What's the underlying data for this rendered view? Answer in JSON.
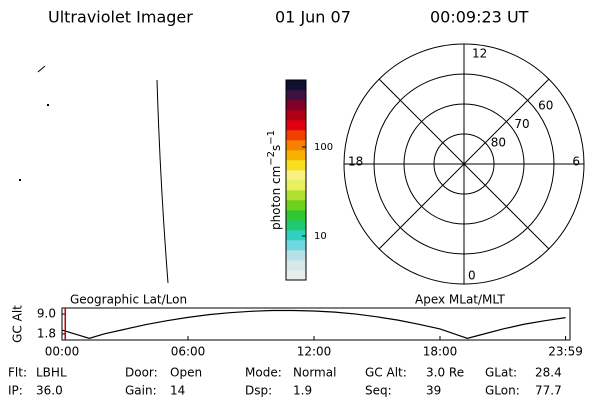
{
  "header": {
    "instrument": "Ultraviolet Imager",
    "date": "01 Jun 07",
    "time": "00:09:23 UT"
  },
  "colorbar": {
    "label_parts": [
      "photon cm",
      "−2",
      "s",
      "−1"
    ],
    "log": true,
    "lim": [
      3.2,
      565
    ],
    "ticks": [
      10,
      100
    ],
    "colors": [
      "#e8eeee",
      "#d8e8ea",
      "#b8e0e8",
      "#70d8e0",
      "#30d0c0",
      "#20c870",
      "#30c830",
      "#70d020",
      "#b0e030",
      "#e8f060",
      "#f8f080",
      "#f8e020",
      "#f8b000",
      "#f88000",
      "#f04000",
      "#e00010",
      "#b00018",
      "#800028",
      "#401040",
      "#101030"
    ]
  },
  "polar": {
    "mlt_labels": [
      "12",
      "18",
      "6",
      "0"
    ],
    "lat_labels": [
      60,
      70,
      80
    ],
    "lat_lim": [
      50,
      90
    ]
  },
  "chart_data": {
    "type": "line",
    "title_left": "Geographic Lat/Lon",
    "title_right": "Apex MLat/MLT",
    "ylabel": "GC Alt",
    "x": [
      0,
      1,
      1.3,
      2,
      3,
      4,
      5,
      6,
      7,
      8,
      9,
      10,
      11,
      12,
      13,
      14,
      15,
      16,
      17,
      18,
      19,
      19.3,
      20,
      21,
      22,
      23,
      23.98
    ],
    "values": [
      3.2,
      0.9,
      0.2,
      1.8,
      3.5,
      5.2,
      6.6,
      7.8,
      8.8,
      9.5,
      10.0,
      10.3,
      10.3,
      10.1,
      9.7,
      9.0,
      8.0,
      6.8,
      5.3,
      3.6,
      1.0,
      0.2,
      1.6,
      3.6,
      5.3,
      6.6,
      7.7
    ],
    "color": "#000000",
    "marker_x": 0.156,
    "marker_color": "#c00000",
    "xlim": [
      0,
      24
    ],
    "ylim": [
      -0.4,
      11.2
    ],
    "xticks": [
      {
        "value": 0,
        "label": "00:00"
      },
      {
        "value": 6,
        "label": "06:00"
      },
      {
        "value": 12,
        "label": "12:00"
      },
      {
        "value": 18,
        "label": "18:00"
      },
      {
        "value": 23.98,
        "label": "23:59"
      }
    ],
    "yticks": [
      {
        "value": 1.8,
        "label": "1.8"
      },
      {
        "value": 9,
        "label": "9.0"
      }
    ]
  },
  "footer": {
    "rows": [
      [
        [
          "Flt:",
          "LBHL"
        ],
        [
          "Door:",
          "Open"
        ],
        [
          "Mode:",
          "Normal"
        ],
        [
          "GC Alt:",
          "3.0 Re"
        ],
        [
          "GLat:",
          "28.4"
        ]
      ],
      [
        [
          "IP:",
          "36.0"
        ],
        [
          "Gain:",
          "14"
        ],
        [
          "Dsp:",
          "1.9"
        ],
        [
          "Seq:",
          "39"
        ],
        [
          "GLon:",
          "77.7"
        ]
      ]
    ]
  }
}
